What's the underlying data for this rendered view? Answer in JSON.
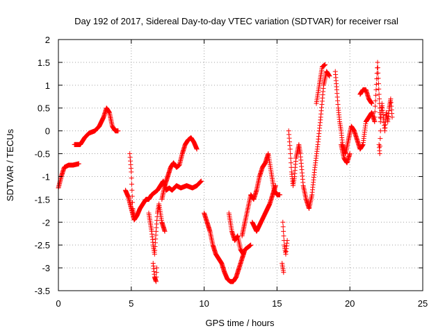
{
  "chart_data": {
    "type": "scatter",
    "title": "Day 192 of 2017, Sidereal Day-to-day VTEC variation (SDTVAR) for receiver rsal",
    "xlabel": "GPS time / hours",
    "ylabel": "SDTVAR / TECUs",
    "xlim": [
      0,
      25
    ],
    "ylim": [
      -3.5,
      2
    ],
    "xticks": [
      0,
      5,
      10,
      15,
      20,
      25
    ],
    "yticks": [
      -3.5,
      -3,
      -2.5,
      -2,
      -1.5,
      -1,
      -0.5,
      0,
      0.5,
      1,
      1.5,
      2
    ],
    "grid": true,
    "marker": "+",
    "color": "#ff0000",
    "segments": [
      {
        "name": "s1",
        "points": [
          [
            0.0,
            -1.25
          ],
          [
            0.2,
            -1.0
          ],
          [
            0.4,
            -0.8
          ],
          [
            0.7,
            -0.75
          ],
          [
            1.0,
            -0.75
          ],
          [
            1.4,
            -0.72
          ]
        ]
      },
      {
        "name": "s2",
        "points": [
          [
            1.1,
            -0.3
          ],
          [
            1.5,
            -0.3
          ],
          [
            1.8,
            -0.15
          ],
          [
            2.1,
            -0.05
          ],
          [
            2.5,
            0.0
          ],
          [
            2.8,
            0.1
          ],
          [
            3.1,
            0.3
          ],
          [
            3.3,
            0.5
          ],
          [
            3.5,
            0.4
          ],
          [
            3.7,
            0.1
          ],
          [
            3.9,
            0.0
          ],
          [
            4.1,
            0.0
          ]
        ]
      },
      {
        "name": "s3",
        "points": [
          [
            4.6,
            -1.3
          ],
          [
            4.8,
            -1.45
          ],
          [
            5.0,
            -1.7
          ],
          [
            5.2,
            -1.95
          ],
          [
            5.4,
            -1.85
          ],
          [
            5.6,
            -1.7
          ],
          [
            5.8,
            -1.6
          ],
          [
            6.0,
            -1.5
          ],
          [
            6.2,
            -1.5
          ],
          [
            6.4,
            -1.4
          ],
          [
            6.6,
            -1.35
          ],
          [
            6.8,
            -1.3
          ],
          [
            7.0,
            -1.2
          ],
          [
            7.2,
            -1.1
          ],
          [
            7.4,
            -1.3
          ],
          [
            7.6,
            -1.25
          ],
          [
            7.8,
            -1.3
          ],
          [
            8.1,
            -1.2
          ],
          [
            8.4,
            -1.25
          ],
          [
            8.8,
            -1.2
          ],
          [
            9.2,
            -1.25
          ],
          [
            9.5,
            -1.2
          ],
          [
            9.8,
            -1.1
          ]
        ]
      },
      {
        "name": "s4",
        "points": [
          [
            4.9,
            -0.5
          ],
          [
            5.0,
            -0.9
          ],
          [
            5.05,
            -1.3
          ],
          [
            5.1,
            -1.7
          ],
          [
            5.2,
            -1.9
          ]
        ]
      },
      {
        "name": "s5",
        "points": [
          [
            6.2,
            -1.8
          ],
          [
            6.4,
            -2.2
          ],
          [
            6.5,
            -2.5
          ],
          [
            6.6,
            -2.7
          ],
          [
            6.7,
            -2.2
          ],
          [
            6.8,
            -1.8
          ],
          [
            6.9,
            -1.6
          ],
          [
            7.1,
            -2.0
          ],
          [
            7.3,
            -2.2
          ]
        ]
      },
      {
        "name": "s6",
        "points": [
          [
            6.5,
            -2.9
          ],
          [
            6.6,
            -3.2
          ],
          [
            6.7,
            -3.3
          ],
          [
            6.75,
            -3.0
          ]
        ]
      },
      {
        "name": "s7",
        "points": [
          [
            7.1,
            -1.5
          ],
          [
            7.3,
            -1.2
          ],
          [
            7.5,
            -1.0
          ],
          [
            7.7,
            -0.8
          ],
          [
            7.9,
            -0.7
          ],
          [
            8.1,
            -0.8
          ],
          [
            8.3,
            -0.75
          ],
          [
            8.5,
            -0.5
          ],
          [
            8.7,
            -0.3
          ],
          [
            8.9,
            -0.2
          ],
          [
            9.1,
            -0.15
          ],
          [
            9.3,
            -0.25
          ],
          [
            9.5,
            -0.4
          ]
        ]
      },
      {
        "name": "s8",
        "points": [
          [
            10.0,
            -1.8
          ],
          [
            10.2,
            -2.0
          ],
          [
            10.4,
            -2.2
          ],
          [
            10.6,
            -2.5
          ],
          [
            10.8,
            -2.7
          ],
          [
            11.0,
            -2.8
          ],
          [
            11.2,
            -2.9
          ],
          [
            11.4,
            -3.1
          ],
          [
            11.6,
            -3.25
          ],
          [
            11.8,
            -3.3
          ],
          [
            12.0,
            -3.3
          ],
          [
            12.2,
            -3.2
          ],
          [
            12.4,
            -3.0
          ],
          [
            12.6,
            -2.8
          ],
          [
            12.8,
            -2.6
          ],
          [
            13.0,
            -2.55
          ],
          [
            13.2,
            -2.5
          ]
        ]
      },
      {
        "name": "s9",
        "points": [
          [
            11.7,
            -1.8
          ],
          [
            11.9,
            -2.2
          ],
          [
            12.1,
            -2.4
          ],
          [
            12.3,
            -2.3
          ],
          [
            12.5,
            -2.6
          ],
          [
            12.7,
            -2.7
          ]
        ]
      },
      {
        "name": "s10",
        "points": [
          [
            12.6,
            -2.3
          ],
          [
            12.8,
            -2.0
          ],
          [
            13.0,
            -1.7
          ],
          [
            13.2,
            -1.4
          ],
          [
            13.4,
            -1.5
          ],
          [
            13.6,
            -1.3
          ],
          [
            13.8,
            -1.0
          ],
          [
            14.0,
            -0.8
          ],
          [
            14.2,
            -0.7
          ],
          [
            14.4,
            -0.5
          ],
          [
            14.6,
            -0.9
          ],
          [
            14.8,
            -1.3
          ],
          [
            15.0,
            -1.4
          ],
          [
            15.2,
            -1.4
          ]
        ]
      },
      {
        "name": "s11",
        "points": [
          [
            13.3,
            -2.0
          ],
          [
            13.6,
            -2.2
          ],
          [
            13.9,
            -2.0
          ],
          [
            14.2,
            -1.8
          ],
          [
            14.5,
            -1.6
          ],
          [
            14.7,
            -1.4
          ],
          [
            14.9,
            -1.2
          ]
        ]
      },
      {
        "name": "s12",
        "points": [
          [
            15.4,
            -2.0
          ],
          [
            15.5,
            -2.5
          ],
          [
            15.6,
            -2.7
          ],
          [
            15.7,
            -2.4
          ]
        ]
      },
      {
        "name": "s13",
        "points": [
          [
            15.35,
            -2.9
          ],
          [
            15.45,
            -3.1
          ]
        ]
      },
      {
        "name": "s14",
        "points": [
          [
            15.8,
            0.0
          ],
          [
            15.9,
            -0.4
          ],
          [
            16.0,
            -0.9
          ],
          [
            16.1,
            -1.2
          ],
          [
            16.2,
            -1.0
          ],
          [
            16.3,
            -0.6
          ],
          [
            16.5,
            -0.3
          ],
          [
            16.6,
            -0.5
          ],
          [
            16.8,
            -1.2
          ],
          [
            17.0,
            -1.5
          ],
          [
            17.2,
            -1.7
          ],
          [
            17.4,
            -1.4
          ],
          [
            17.6,
            -0.8
          ],
          [
            17.8,
            -0.3
          ],
          [
            18.0,
            0.3
          ],
          [
            18.2,
            1.0
          ],
          [
            18.4,
            1.3
          ],
          [
            18.6,
            1.2
          ]
        ]
      },
      {
        "name": "s15",
        "points": [
          [
            17.7,
            0.6
          ],
          [
            17.9,
            1.0
          ],
          [
            18.1,
            1.4
          ],
          [
            18.3,
            1.45
          ]
        ]
      },
      {
        "name": "s16",
        "points": [
          [
            19.0,
            1.3
          ],
          [
            19.1,
            0.9
          ],
          [
            19.2,
            0.5
          ],
          [
            19.3,
            0.2
          ],
          [
            19.4,
            0.0
          ],
          [
            19.5,
            -0.3
          ],
          [
            19.7,
            -0.5
          ],
          [
            19.9,
            -0.2
          ],
          [
            20.1,
            0.1
          ],
          [
            20.3,
            0.0
          ],
          [
            20.5,
            -0.2
          ],
          [
            20.7,
            -0.4
          ],
          [
            20.9,
            -0.3
          ],
          [
            21.1,
            0.2
          ],
          [
            21.3,
            0.3
          ],
          [
            21.5,
            0.4
          ],
          [
            21.7,
            0.2
          ]
        ]
      },
      {
        "name": "s17",
        "points": [
          [
            19.4,
            -0.3
          ],
          [
            19.6,
            -0.6
          ],
          [
            19.8,
            -0.7
          ],
          [
            20.0,
            -0.5
          ]
        ]
      },
      {
        "name": "s18",
        "points": [
          [
            20.7,
            0.8
          ],
          [
            20.9,
            0.9
          ],
          [
            21.1,
            0.9
          ],
          [
            21.3,
            0.7
          ],
          [
            21.5,
            0.6
          ]
        ]
      },
      {
        "name": "s19",
        "points": [
          [
            21.7,
            0.3
          ],
          [
            21.9,
            1.5
          ],
          [
            22.0,
            0.8
          ],
          [
            22.1,
            0.2
          ],
          [
            22.2,
            0.6
          ],
          [
            22.3,
            0.3
          ],
          [
            22.4,
            0.0
          ],
          [
            22.5,
            0.4
          ],
          [
            22.6,
            0.2
          ],
          [
            22.7,
            0.5
          ],
          [
            22.8,
            0.7
          ],
          [
            22.9,
            0.3
          ]
        ]
      },
      {
        "name": "s20",
        "points": [
          [
            22.0,
            -0.3
          ],
          [
            22.05,
            -0.5
          ],
          [
            22.1,
            0.0
          ]
        ]
      }
    ]
  }
}
